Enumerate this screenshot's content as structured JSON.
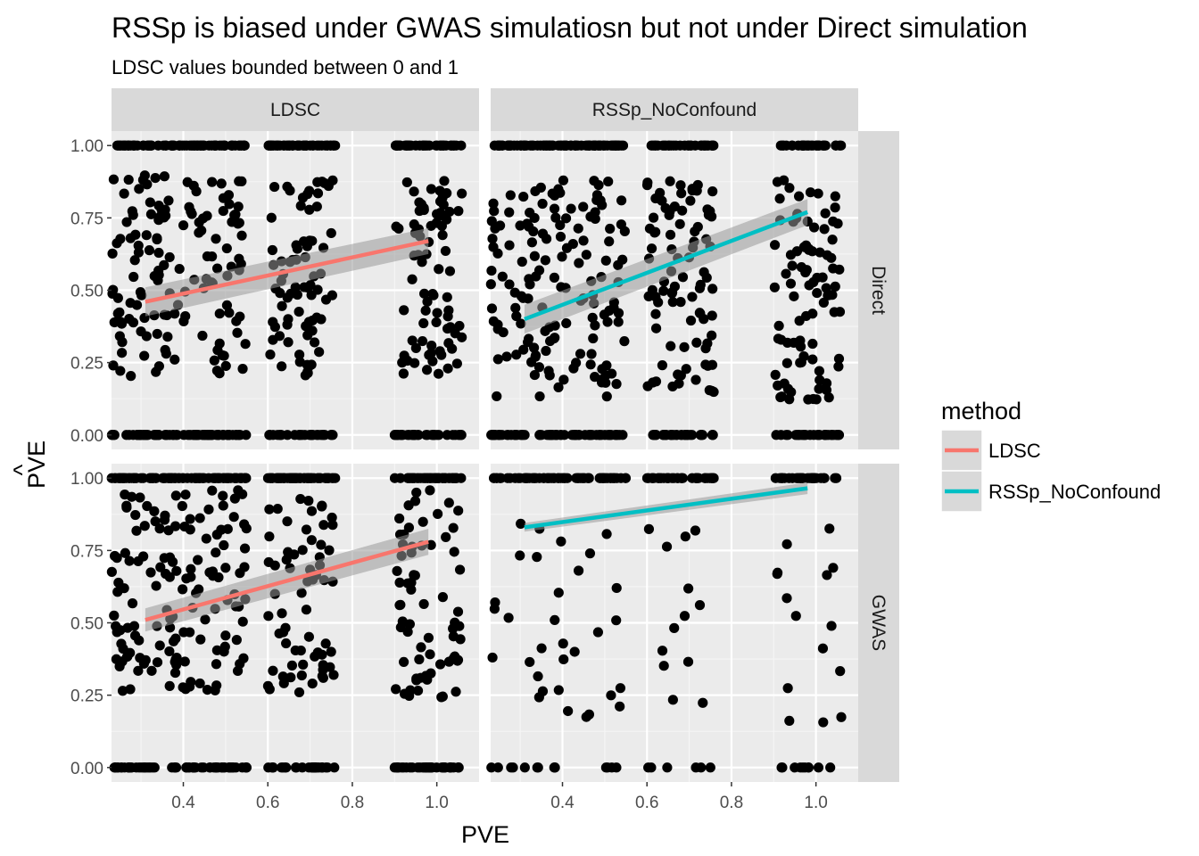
{
  "chart_data": {
    "type": "scatter",
    "title": "RSSp is biased under GWAS simulatiosn but not under Direct simulation",
    "subtitle": "LDSC values bounded between 0 and 1",
    "xlabel": "PVE",
    "ylabel_base": "PVE",
    "ylabel_accent": "^",
    "xlim": [
      0.23,
      1.1
    ],
    "ylim": [
      -0.05,
      1.05
    ],
    "x_ticks": [
      0.4,
      0.6,
      0.8,
      1.0
    ],
    "x_tick_labels": [
      "0.4",
      "0.6",
      "0.8",
      "1.0"
    ],
    "y_ticks": [
      0,
      0.25,
      0.5,
      0.75,
      1.0
    ],
    "y_tick_labels": [
      "0.00",
      "0.25",
      "0.50",
      "0.75",
      "1.00"
    ],
    "true_pve_levels": [
      0.31,
      0.47,
      0.68,
      0.98
    ],
    "x_jitter": 0.08,
    "column_facets": [
      "LDSC",
      "RSSp_NoConfound"
    ],
    "row_facets": [
      "Direct",
      "GWAS"
    ],
    "grid": true,
    "legend": {
      "title": "method",
      "placement": "right",
      "entries": [
        {
          "name": "LDSC",
          "color": "#F8766D"
        },
        {
          "name": "RSSp_NoConfound",
          "color": "#00BFC4"
        }
      ]
    },
    "panels": [
      {
        "column": "LDSC",
        "row": "Direct",
        "method": "LDSC",
        "trend": {
          "x": [
            0.31,
            0.98
          ],
          "y": [
            0.46,
            0.67
          ],
          "se": [
            0.05,
            0.045
          ]
        },
        "point_profile": {
          "n": 150,
          "frac_one": 0.26,
          "frac_zero": 0.24,
          "mid_center": 0.55,
          "mid_spread": 0.35
        }
      },
      {
        "column": "RSSp_NoConfound",
        "row": "Direct",
        "method": "RSSp_NoConfound",
        "trend": {
          "x": [
            0.31,
            0.98
          ],
          "y": [
            0.4,
            0.77
          ],
          "se": [
            0.05,
            0.045
          ]
        },
        "point_profile": {
          "n": 150,
          "frac_one": 0.25,
          "frac_zero": 0.2,
          "mid_center": 0.5,
          "mid_spread": 0.38
        }
      },
      {
        "column": "LDSC",
        "row": "GWAS",
        "method": "LDSC",
        "trend": {
          "x": [
            0.31,
            0.98
          ],
          "y": [
            0.51,
            0.78
          ],
          "se": [
            0.04,
            0.045
          ]
        },
        "point_profile": {
          "n": 150,
          "frac_one": 0.3,
          "frac_zero": 0.2,
          "mid_center": 0.6,
          "mid_spread": 0.36
        }
      },
      {
        "column": "RSSp_NoConfound",
        "row": "GWAS",
        "method": "RSSp_NoConfound",
        "trend": {
          "x": [
            0.31,
            0.98
          ],
          "y": [
            0.83,
            0.965
          ],
          "se": [
            0.015,
            0.02
          ]
        },
        "point_profile": {
          "n": 55,
          "frac_one": 0.6,
          "frac_zero": 0.12,
          "mid_center": 0.5,
          "mid_spread": 0.35
        }
      }
    ]
  }
}
